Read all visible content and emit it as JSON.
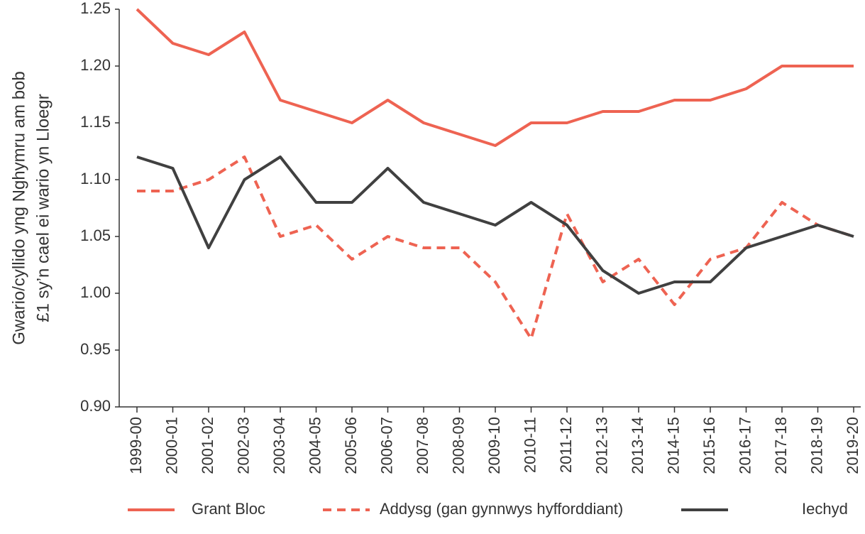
{
  "chart_data": {
    "type": "line",
    "ylabel": [
      "Gwario/cyllido yng Nghymru am bob",
      "£1 sy’n cael ei wario yn Lloegr"
    ],
    "categories": [
      "1999-00",
      "2000-01",
      "2001-02",
      "2002-03",
      "2003-04",
      "2004-05",
      "2005-06",
      "2006-07",
      "2007-08",
      "2008-09",
      "2009-10",
      "2010-11",
      "2011-12",
      "2012-13",
      "2013-14",
      "2014-15",
      "2015-16",
      "2016-17",
      "2017-18",
      "2018-19",
      "2019-20"
    ],
    "series": [
      {
        "name": "Grant Bloc",
        "color": "#ee6352",
        "dash": false,
        "values": [
          1.25,
          1.22,
          1.21,
          1.23,
          1.17,
          1.16,
          1.15,
          1.17,
          1.15,
          1.14,
          1.13,
          1.15,
          1.15,
          1.16,
          1.16,
          1.17,
          1.17,
          1.18,
          1.2,
          1.2,
          1.2
        ]
      },
      {
        "name": "Addysg (gan gynnwys hyfforddiant)",
        "color": "#ee6352",
        "dash": true,
        "values": [
          1.09,
          1.09,
          1.1,
          1.12,
          1.05,
          1.06,
          1.03,
          1.05,
          1.04,
          1.04,
          1.01,
          0.96,
          1.07,
          1.01,
          1.03,
          0.99,
          1.03,
          1.04,
          1.08,
          1.06,
          1.05
        ]
      },
      {
        "name": "Iechyd",
        "color": "#404040",
        "dash": false,
        "values": [
          1.12,
          1.11,
          1.04,
          1.1,
          1.12,
          1.08,
          1.08,
          1.11,
          1.08,
          1.07,
          1.06,
          1.08,
          1.06,
          1.02,
          1.0,
          1.01,
          1.01,
          1.04,
          1.05,
          1.06,
          1.05
        ]
      }
    ],
    "ylim": [
      0.9,
      1.25
    ],
    "yticks": [
      {
        "value": 0.9,
        "label": "0.90"
      },
      0.95,
      {
        "value": 1.0,
        "label": "1.00"
      },
      1.05,
      {
        "value": 1.1,
        "label": "1.10"
      },
      1.15,
      {
        "value": 1.2,
        "label": "1.20"
      },
      1.25
    ],
    "grid": false,
    "legend": "bottom"
  }
}
